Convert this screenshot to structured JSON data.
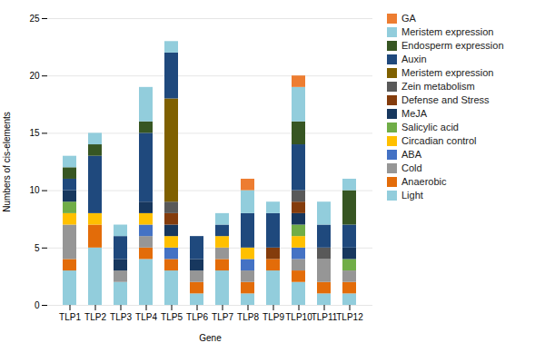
{
  "chart_data": {
    "type": "bar",
    "stacked": true,
    "xlabel": "Gene",
    "ylabel": "Numbers of cis-elements",
    "categories": [
      "TLP1",
      "TLP2",
      "TLP3",
      "TLP4",
      "TLP5",
      "TLP6",
      "TLP7",
      "TLP8",
      "TLP9",
      "TLP10",
      "TLP11",
      "TLP12"
    ],
    "series": [
      {
        "name": "Light",
        "color": "#92CDDC",
        "values": [
          3,
          5,
          2,
          4,
          3,
          1,
          3,
          1,
          3,
          2,
          1,
          1
        ]
      },
      {
        "name": "Anaerobic",
        "color": "#E36C09",
        "values": [
          1,
          2,
          0,
          1,
          1,
          1,
          1,
          1,
          1,
          1,
          1,
          1
        ]
      },
      {
        "name": "Cold",
        "color": "#969696",
        "values": [
          3,
          0,
          1,
          1,
          0,
          1,
          1,
          1,
          0,
          1,
          2,
          1
        ]
      },
      {
        "name": "ABA",
        "color": "#4472C4",
        "values": [
          0,
          0,
          0,
          1,
          1,
          0,
          0,
          1,
          0,
          1,
          0,
          0
        ]
      },
      {
        "name": "Circadian control",
        "color": "#FFC000",
        "values": [
          1,
          1,
          0,
          1,
          1,
          0,
          1,
          1,
          0,
          1,
          0,
          0
        ]
      },
      {
        "name": "Salicylic acid",
        "color": "#70AD47",
        "values": [
          1,
          0,
          0,
          0,
          0,
          0,
          0,
          0,
          0,
          1,
          0,
          1
        ]
      },
      {
        "name": "MeJA",
        "color": "#17375E",
        "values": [
          1,
          0,
          1,
          1,
          1,
          1,
          0,
          0,
          0,
          1,
          0,
          1
        ]
      },
      {
        "name": "Defense and Stress",
        "color": "#843C0C",
        "values": [
          0,
          0,
          0,
          0,
          1,
          0,
          0,
          0,
          1,
          1,
          0,
          0
        ]
      },
      {
        "name": "Zein metabolism",
        "color": "#595959",
        "values": [
          0,
          0,
          0,
          0,
          1,
          0,
          0,
          0,
          0,
          1,
          1,
          0
        ]
      },
      {
        "name": "Meristem expression",
        "color": "#7F6000",
        "values": [
          0,
          0,
          0,
          0,
          9,
          0,
          0,
          0,
          0,
          0,
          0,
          0
        ]
      },
      {
        "name": "Auxin",
        "color": "#1F497D",
        "values": [
          1,
          5,
          2,
          6,
          4,
          2,
          1,
          3,
          3,
          4,
          2,
          2
        ]
      },
      {
        "name": "Endosperm expression",
        "color": "#375623",
        "values": [
          1,
          1,
          0,
          1,
          0,
          0,
          0,
          0,
          0,
          2,
          0,
          3
        ]
      },
      {
        "name": "Meristem expression",
        "color": "#92CDDC",
        "values": [
          1,
          1,
          1,
          3,
          1,
          0,
          1,
          2,
          1,
          3,
          2,
          1
        ]
      },
      {
        "name": "GA",
        "color": "#ED7D31",
        "values": [
          0,
          0,
          0,
          0,
          0,
          0,
          0,
          1,
          0,
          1,
          0,
          0
        ]
      }
    ],
    "ylim": [
      0,
      25
    ],
    "yticks": [
      0,
      5,
      10,
      15,
      20,
      25
    ],
    "grid": true,
    "legend": "right"
  }
}
